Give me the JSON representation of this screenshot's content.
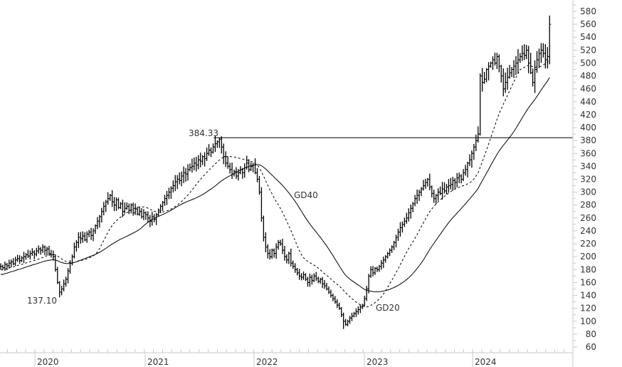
{
  "chart_data": {
    "type": "ohlc-line",
    "interval": "weekly",
    "ylim": [
      50,
      590
    ],
    "yticks": [
      60,
      80,
      100,
      120,
      140,
      160,
      180,
      200,
      220,
      240,
      260,
      280,
      300,
      320,
      340,
      360,
      380,
      400,
      420,
      440,
      460,
      480,
      500,
      520,
      540,
      560,
      580
    ],
    "xticks": [
      "2020",
      "2021",
      "2022",
      "2023",
      "2024"
    ],
    "grid": false,
    "close": [
      185,
      183,
      188,
      186,
      190,
      192,
      189,
      195,
      197,
      194,
      198,
      200,
      203,
      201,
      205,
      207,
      204,
      209,
      212,
      210,
      215,
      210,
      212,
      205,
      203,
      200,
      180,
      160,
      145,
      150,
      158,
      165,
      178,
      190,
      200,
      215,
      222,
      230,
      228,
      232,
      226,
      235,
      238,
      233,
      240,
      248,
      255,
      262,
      270,
      278,
      285,
      290,
      295,
      285,
      280,
      288,
      276,
      282,
      270,
      275,
      278,
      272,
      280,
      268,
      274,
      266,
      270,
      262,
      268,
      265,
      260,
      255,
      262,
      258,
      265,
      272,
      278,
      284,
      290,
      295,
      300,
      306,
      310,
      316,
      320,
      318,
      325,
      330,
      328,
      335,
      338,
      340,
      345,
      342,
      350,
      348,
      355,
      352,
      360,
      365,
      362,
      370,
      375,
      378,
      382,
      370,
      355,
      345,
      340,
      335,
      328,
      332,
      325,
      330,
      335,
      330,
      338,
      345,
      335,
      340,
      342,
      330,
      320,
      300,
      260,
      230,
      215,
      205,
      200,
      210,
      205,
      215,
      222,
      220,
      210,
      200,
      195,
      205,
      190,
      185,
      180,
      175,
      170,
      168,
      172,
      165,
      160,
      168,
      163,
      170,
      166,
      162,
      165,
      158,
      155,
      150,
      145,
      140,
      135,
      130,
      125,
      120,
      110,
      100,
      95,
      100,
      105,
      108,
      112,
      115,
      118,
      122,
      125,
      135,
      150,
      170,
      180,
      175,
      182,
      180,
      185,
      190,
      195,
      200,
      205,
      210,
      215,
      222,
      230,
      238,
      245,
      250,
      255,
      260,
      268,
      275,
      282,
      290,
      295,
      300,
      305,
      310,
      315,
      320,
      308,
      298,
      290,
      295,
      300,
      298,
      305,
      302,
      308,
      310,
      312,
      318,
      315,
      322,
      325,
      320,
      330,
      335,
      345,
      350,
      360,
      370,
      380,
      390,
      480,
      470,
      475,
      490,
      495,
      500,
      505,
      500,
      510,
      495,
      480,
      460,
      470,
      478,
      485,
      490,
      495,
      500,
      505,
      510,
      515,
      512,
      520,
      500,
      485,
      470,
      490,
      505,
      515,
      520,
      515,
      505,
      510,
      560
    ],
    "series": [
      {
        "name": "GD20",
        "type": "moving-average",
        "period": 20,
        "style": "dashed"
      },
      {
        "name": "GD40",
        "type": "moving-average",
        "period": 40,
        "style": "solid"
      }
    ],
    "annotations": [
      {
        "text": "137.10",
        "value": 137.1,
        "kind": "low"
      },
      {
        "text": "384.33",
        "value": 384.33,
        "kind": "high",
        "horizontal_line": true
      }
    ],
    "colors": {
      "bars": "#000000",
      "axis": "#c8c8c8",
      "text": "#333333"
    }
  }
}
